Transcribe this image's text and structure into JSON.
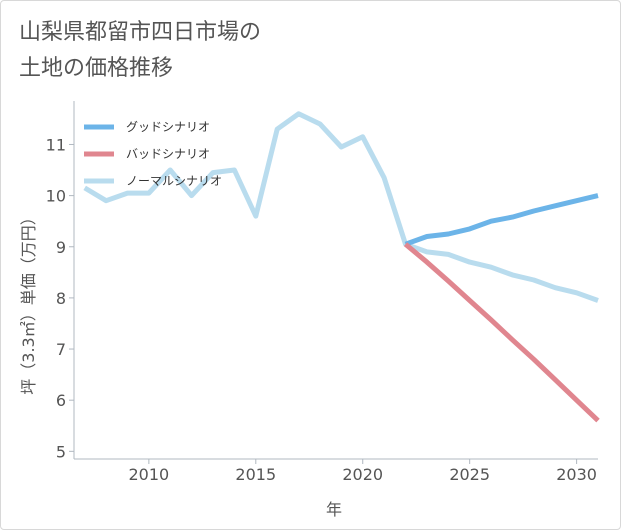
{
  "title": {
    "line1": "山梨県都留市四日市場の",
    "line2": "土地の価格推移"
  },
  "chart_data": {
    "type": "line",
    "xlabel": "年",
    "ylabel": "坪（3.3㎡）単価（万円）",
    "xlim": [
      2006.5,
      2031
    ],
    "ylim": [
      4.85,
      11.85
    ],
    "xticks": [
      2010,
      2015,
      2020,
      2025,
      2030
    ],
    "yticks": [
      5,
      6,
      7,
      8,
      9,
      10,
      11
    ],
    "grid": false,
    "legend_position": "top-left",
    "series": [
      {
        "name": "グッドシナリオ",
        "color": "#6cb4e8",
        "points": [
          [
            2022,
            9.05
          ],
          [
            2023,
            9.2
          ],
          [
            2024,
            9.25
          ],
          [
            2025,
            9.35
          ],
          [
            2026,
            9.5
          ],
          [
            2027,
            9.58
          ],
          [
            2028,
            9.7
          ],
          [
            2029,
            9.8
          ],
          [
            2030,
            9.9
          ],
          [
            2031,
            10.0
          ]
        ]
      },
      {
        "name": "バッドシナリオ",
        "color": "#e0868f",
        "points": [
          [
            2022,
            9.05
          ],
          [
            2023,
            8.7
          ],
          [
            2024,
            8.33
          ],
          [
            2025,
            7.95
          ],
          [
            2026,
            7.57
          ],
          [
            2027,
            7.18
          ],
          [
            2028,
            6.8
          ],
          [
            2029,
            6.4
          ],
          [
            2030,
            6.0
          ],
          [
            2031,
            5.6
          ]
        ]
      },
      {
        "name": "ノーマルシナリオ",
        "color": "#b9dcee",
        "points": [
          [
            2007,
            10.15
          ],
          [
            2008,
            9.9
          ],
          [
            2009,
            10.05
          ],
          [
            2010,
            10.05
          ],
          [
            2011,
            10.5
          ],
          [
            2012,
            10.0
          ],
          [
            2013,
            10.45
          ],
          [
            2014,
            10.5
          ],
          [
            2015,
            9.6
          ],
          [
            2016,
            11.3
          ],
          [
            2017,
            11.6
          ],
          [
            2018,
            11.4
          ],
          [
            2019,
            10.95
          ],
          [
            2020,
            11.15
          ],
          [
            2021,
            10.35
          ],
          [
            2022,
            9.05
          ],
          [
            2023,
            8.9
          ],
          [
            2024,
            8.85
          ],
          [
            2025,
            8.7
          ],
          [
            2026,
            8.6
          ],
          [
            2027,
            8.45
          ],
          [
            2028,
            8.35
          ],
          [
            2029,
            8.2
          ],
          [
            2030,
            8.1
          ],
          [
            2031,
            7.95
          ]
        ]
      }
    ]
  }
}
